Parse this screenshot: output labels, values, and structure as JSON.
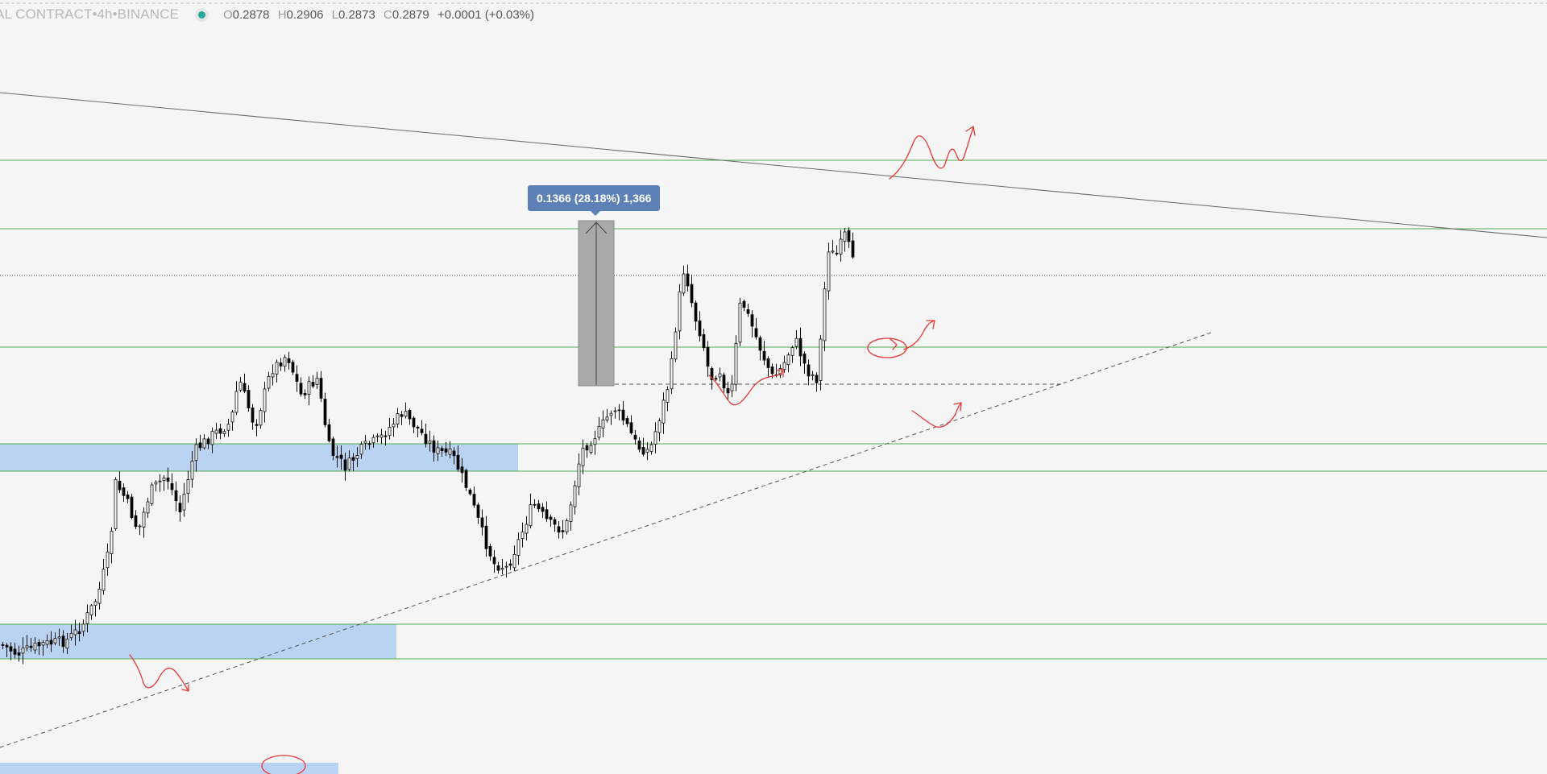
{
  "legend": {
    "symbol": "AL CONTRACT",
    "interval": "4h",
    "exchange": "BINANCE",
    "separator": " • ",
    "open_label": "O",
    "open": "0.2878",
    "high_label": "H",
    "high": "0.2906",
    "low_label": "L",
    "low": "0.2873",
    "close_label": "C",
    "close": "0.2879",
    "change": "+0.0001 (+0.03%)"
  },
  "measure": {
    "label": "0.1366 (28.18%) 1,366"
  },
  "colors": {
    "background": "#f5f5f5",
    "level_line": "#4caf50",
    "zone_fill": "#bbd3f3",
    "trendline": "#6a6a6a",
    "annotation": "#e53935",
    "candle_up": "#ffffff",
    "candle_down": "#000000",
    "measure_box": "#a9a9a9",
    "measure_label": "#5d81b6"
  },
  "icons": {
    "market_status": "market-open-dot-icon"
  }
}
